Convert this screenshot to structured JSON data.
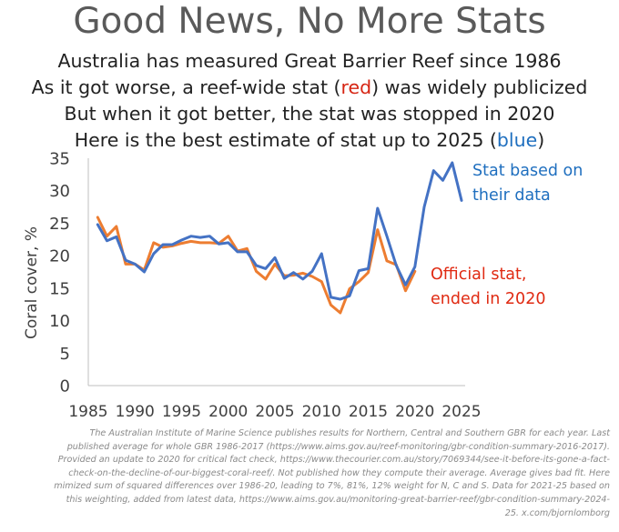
{
  "title": "Good News, No More Stats",
  "subtitle_lines": {
    "line1": "Australia has measured Great Barrier Reef since 1986",
    "line2_before": "As it got worse, a reef-wide stat (",
    "line2_red": "red",
    "line2_after": ") was widely publicized",
    "line3": "But when it got better, the stat was stopped in 2020",
    "line4_before": "Here is the best estimate of stat up to 2025 (",
    "line4_blue": "blue",
    "line4_after": ")"
  },
  "colors": {
    "estimate_line": "#4472c4",
    "official_line": "#ed7d31",
    "estimate_label": "#1f6fbf",
    "official_label": "#e02a12",
    "red_word": "#d62412",
    "blue_word": "#1f6fbf"
  },
  "chart_data": {
    "type": "line",
    "ylabel": "Coral cover, %",
    "xlabel": "",
    "xlim": [
      1985,
      2025
    ],
    "ylim": [
      0,
      35
    ],
    "x_ticks": [
      "1985",
      "1990",
      "1995",
      "2000",
      "2005",
      "2010",
      "2015",
      "2020",
      "2025"
    ],
    "y_ticks": [
      "0",
      "5",
      "10",
      "15",
      "20",
      "25",
      "30",
      "35"
    ],
    "grid": false,
    "series": [
      {
        "key": "estimate",
        "label_lines": [
          "Stat based on",
          "their data"
        ],
        "x": [
          1986,
          1987,
          1988,
          1989,
          1990,
          1991,
          1992,
          1993,
          1994,
          1995,
          1996,
          1997,
          1998,
          1999,
          2000,
          2001,
          2002,
          2003,
          2004,
          2005,
          2006,
          2007,
          2008,
          2009,
          2010,
          2011,
          2012,
          2013,
          2014,
          2015,
          2016,
          2017,
          2018,
          2019,
          2020,
          2021,
          2022,
          2023,
          2024,
          2025
        ],
        "values": [
          24.8,
          22.3,
          22.9,
          19.3,
          18.7,
          17.5,
          20.3,
          21.7,
          21.7,
          22.4,
          23.0,
          22.8,
          23.0,
          21.8,
          22.0,
          20.6,
          20.6,
          18.5,
          18.0,
          19.7,
          16.5,
          17.4,
          16.4,
          17.6,
          20.3,
          13.6,
          13.3,
          13.8,
          17.7,
          18.0,
          27.3,
          23.0,
          18.5,
          15.5,
          18.3,
          27.5,
          33.1,
          31.6,
          34.3,
          28.5
        ]
      },
      {
        "key": "official",
        "label_lines": [
          "Official stat,",
          "ended in 2020"
        ],
        "x": [
          1986,
          1987,
          1988,
          1989,
          1990,
          1991,
          1992,
          1993,
          1994,
          1995,
          1996,
          1997,
          1998,
          1999,
          2000,
          2001,
          2002,
          2003,
          2004,
          2005,
          2006,
          2007,
          2008,
          2009,
          2010,
          2011,
          2012,
          2013,
          2014,
          2015,
          2016,
          2017,
          2018,
          2019,
          2020
        ],
        "values": [
          25.9,
          23.0,
          24.5,
          18.7,
          18.7,
          17.8,
          22.0,
          21.3,
          21.5,
          21.9,
          22.2,
          22.0,
          22.0,
          21.9,
          23.0,
          20.7,
          21.1,
          17.6,
          16.4,
          18.7,
          16.9,
          17.0,
          17.3,
          16.8,
          16.0,
          12.4,
          11.2,
          14.9,
          16.0,
          17.4,
          24.0,
          19.2,
          18.6,
          14.6,
          17.6
        ]
      }
    ]
  },
  "footnote_lines": [
    "The Australian Institute of Marine Science publishes results for Northern, Central and Southern GBR for each year. Last",
    "published average for whole GBR 1986-2017 (https://www.aims.gov.au/reef-monitoring/gbr-condition-summary-2016-2017).",
    "Provided an update to 2020 for critical fact check, https://www.thecourier.com.au/story/7069344/see-it-before-its-gone-a-fact-",
    "check-on-the-decline-of-our-biggest-coral-reef/. Not published how they compute their average. Average gives bad fit. Here",
    "mimized sum of squared differences over 1986-20, leading to 7%, 81%, 12% weight for N, C and S. Data for 2021-25 based on",
    "this weighting, added from latest data, https://www.aims.gov.au/monitoring-great-barrier-reef/gbr-condition-summary-2024-",
    "25. x.com/bjornlomborg"
  ]
}
